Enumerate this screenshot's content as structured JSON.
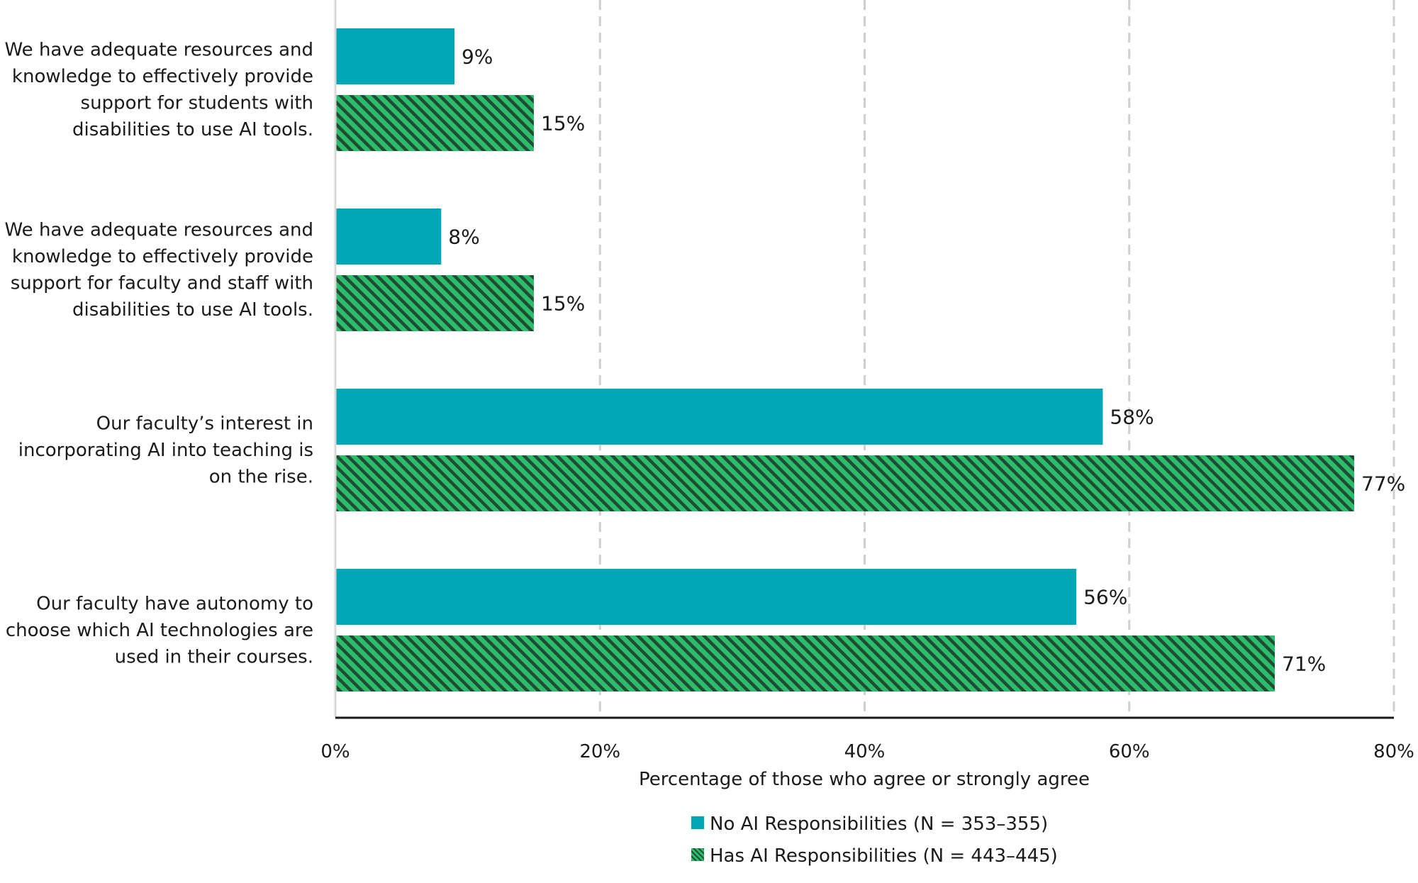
{
  "chart_data": {
    "type": "bar",
    "orientation": "horizontal",
    "categories": [
      "We have adequate resources and knowledge to effectively provide support for students with disabilities to use AI tools.",
      "We have adequate resources and knowledge to effectively provide support for faculty and staff with disabilities to use AI tools.",
      "Our faculty’s interest in incorporating AI into teaching is on the rise.",
      "Our faculty have autonomy to choose which AI technologies are used in their courses."
    ],
    "category_lines": [
      [
        "We have adequate resources and",
        "knowledge to effectively provide",
        "support for students with",
        "disabilities to use AI tools."
      ],
      [
        "We have adequate resources and",
        "knowledge to effectively provide",
        "support for faculty and staff with",
        "disabilities to use AI tools."
      ],
      [
        "Our faculty’s interest in",
        "incorporating AI into teaching is",
        "on the rise."
      ],
      [
        "Our faculty have autonomy to",
        "choose which AI technologies are",
        "used in their courses."
      ]
    ],
    "series": [
      {
        "name": "No AI Responsibilities (N = 353–355)",
        "values": [
          9,
          8,
          58,
          56
        ],
        "labels": [
          "9%",
          "8%",
          "58%",
          "56%"
        ],
        "color": "#00a8b5",
        "pattern": "solid"
      },
      {
        "name": "Has AI Responsibilities (N = 443–445)",
        "values": [
          15,
          15,
          77,
          71
        ],
        "labels": [
          "15%",
          "15%",
          "77%",
          "71%"
        ],
        "color": "#2dbb6c",
        "pattern": "hatched",
        "hatch_color": "#1f4d33"
      }
    ],
    "xlim": [
      0,
      80
    ],
    "xticks": [
      0,
      20,
      40,
      60,
      80
    ],
    "xtick_labels": [
      "0%",
      "20%",
      "40%",
      "60%",
      "80%"
    ],
    "xlabel": "Percentage of those who agree or strongly agree",
    "ylabel": "",
    "grid": "vertical-dashed",
    "legend_position": "bottom"
  }
}
